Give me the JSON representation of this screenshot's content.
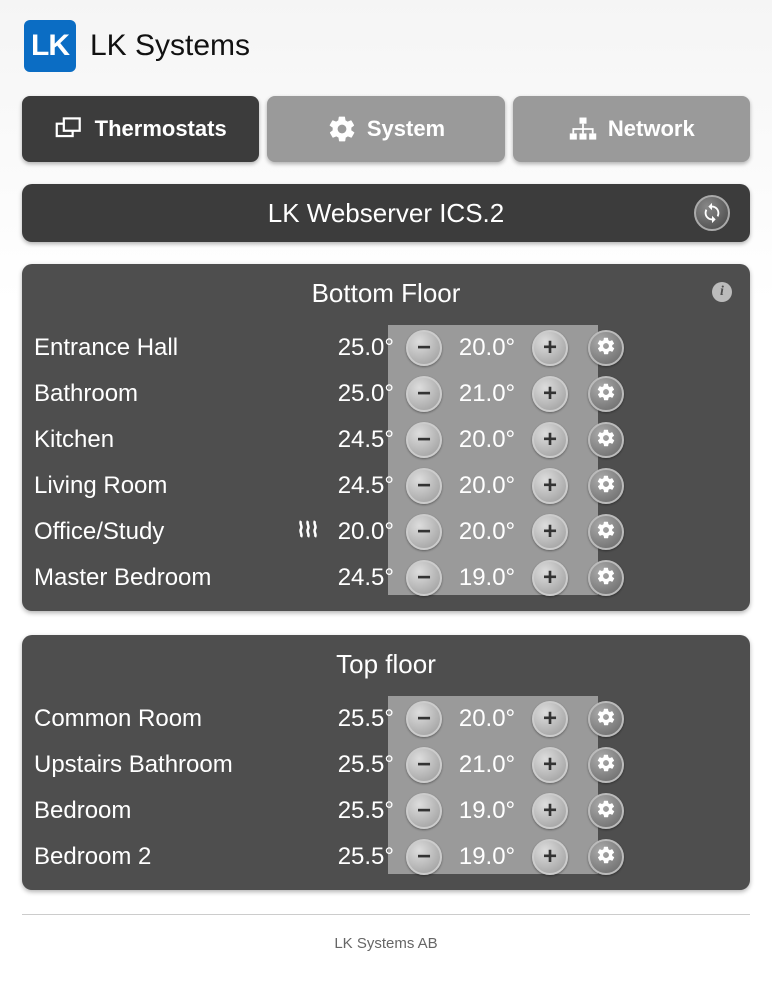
{
  "brand": "LK Systems",
  "logo_letters": "LK",
  "tabs": [
    {
      "label": "Thermostats",
      "icon": "thermostats",
      "active": true
    },
    {
      "label": "System",
      "icon": "system",
      "active": false
    },
    {
      "label": "Network",
      "icon": "network",
      "active": false
    }
  ],
  "server_title": "LK Webserver ICS.2",
  "floors": [
    {
      "title": "Bottom Floor",
      "show_info": true,
      "rooms": [
        {
          "name": "Entrance Hall",
          "current": "25.0°",
          "setpoint": "20.0°",
          "heating": false
        },
        {
          "name": "Bathroom",
          "current": "25.0°",
          "setpoint": "21.0°",
          "heating": false
        },
        {
          "name": "Kitchen",
          "current": "24.5°",
          "setpoint": "20.0°",
          "heating": false
        },
        {
          "name": "Living Room",
          "current": "24.5°",
          "setpoint": "20.0°",
          "heating": false
        },
        {
          "name": "Office/Study",
          "current": "20.0°",
          "setpoint": "20.0°",
          "heating": true
        },
        {
          "name": "Master Bedroom",
          "current": "24.5°",
          "setpoint": "19.0°",
          "heating": false
        }
      ]
    },
    {
      "title": "Top floor",
      "show_info": false,
      "rooms": [
        {
          "name": "Common Room",
          "current": "25.5°",
          "setpoint": "20.0°",
          "heating": false
        },
        {
          "name": "Upstairs Bathroom",
          "current": "25.5°",
          "setpoint": "21.0°",
          "heating": false
        },
        {
          "name": "Bedroom",
          "current": "25.5°",
          "setpoint": "19.0°",
          "heating": false
        },
        {
          "name": "Bedroom 2",
          "current": "25.5°",
          "setpoint": "19.0°",
          "heating": false
        }
      ]
    }
  ],
  "footer": "LK Systems AB",
  "colors": {
    "tab_active_bg": "#3c3c3c",
    "tab_inactive_bg": "#9a9a9a",
    "panel_bg": "#4e4e4e",
    "setpoint_col_bg": "#9a9a9a",
    "logo_bg": "#0b6dc4",
    "text_light": "#ffffff"
  }
}
